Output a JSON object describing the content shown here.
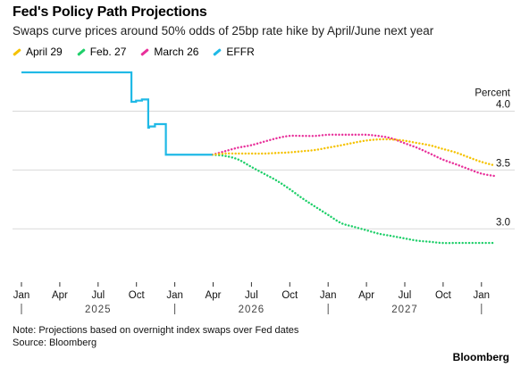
{
  "chart_data": {
    "type": "line",
    "title": "Fed's Policy Path Projections",
    "subtitle": "Swaps curve prices around 50% odds of 25bp rate hike by April/June next year",
    "ylabel": "Percent",
    "ylim": [
      2.6,
      4.3
    ],
    "y_ticks": [
      "4.0",
      "3.5",
      "3.0"
    ],
    "grid": true,
    "legend_position": "top-left",
    "x_ticks": [
      "Jan",
      "Apr",
      "Jul",
      "Oct",
      "Jan",
      "Apr",
      "Jul",
      "Oct",
      "Jan",
      "Apr",
      "Jul",
      "Oct",
      "Jan"
    ],
    "year_labels": [
      "2025",
      "2026",
      "2027"
    ],
    "series": [
      {
        "name": "April 29",
        "color": "#f5c200",
        "style": "dotted",
        "x": [
          "2026-04-01",
          "2026-05-01",
          "2026-06-01",
          "2026-07-01",
          "2026-08-01",
          "2026-09-01",
          "2026-10-01",
          "2026-11-01",
          "2026-12-01",
          "2027-01-01",
          "2027-02-01",
          "2027-03-01",
          "2027-04-01",
          "2027-05-01",
          "2027-06-01",
          "2027-07-01",
          "2027-08-01",
          "2027-09-01",
          "2027-10-01",
          "2027-11-01",
          "2027-12-01",
          "2028-01-01",
          "2028-02-01"
        ],
        "values": [
          3.63,
          3.64,
          3.64,
          3.64,
          3.64,
          3.645,
          3.65,
          3.66,
          3.67,
          3.69,
          3.71,
          3.73,
          3.75,
          3.76,
          3.76,
          3.75,
          3.73,
          3.71,
          3.68,
          3.65,
          3.61,
          3.57,
          3.54
        ]
      },
      {
        "name": "Feb. 27",
        "color": "#1fcf6a",
        "style": "dotted",
        "x": [
          "2026-04-01",
          "2026-05-01",
          "2026-06-01",
          "2026-07-01",
          "2026-08-01",
          "2026-09-01",
          "2026-10-01",
          "2026-11-01",
          "2026-12-01",
          "2027-01-01",
          "2027-02-01",
          "2027-03-01",
          "2027-04-01",
          "2027-05-01",
          "2027-06-01",
          "2027-07-01",
          "2027-08-01",
          "2027-09-01",
          "2027-10-01",
          "2027-11-01",
          "2027-12-01",
          "2028-01-01",
          "2028-02-01"
        ],
        "values": [
          3.63,
          3.62,
          3.59,
          3.53,
          3.47,
          3.41,
          3.34,
          3.26,
          3.19,
          3.12,
          3.05,
          3.02,
          2.99,
          2.96,
          2.94,
          2.92,
          2.9,
          2.89,
          2.88,
          2.88,
          2.88,
          2.88,
          2.88
        ]
      },
      {
        "name": "March 26",
        "color": "#e8309a",
        "style": "dotted",
        "x": [
          "2026-04-01",
          "2026-05-01",
          "2026-06-01",
          "2026-07-01",
          "2026-08-01",
          "2026-09-01",
          "2026-10-01",
          "2026-11-01",
          "2026-12-01",
          "2027-01-01",
          "2027-02-01",
          "2027-03-01",
          "2027-04-01",
          "2027-05-01",
          "2027-06-01",
          "2027-07-01",
          "2027-08-01",
          "2027-09-01",
          "2027-10-01",
          "2027-11-01",
          "2027-12-01",
          "2028-01-01",
          "2028-02-01"
        ],
        "values": [
          3.63,
          3.66,
          3.69,
          3.71,
          3.74,
          3.77,
          3.79,
          3.79,
          3.79,
          3.8,
          3.8,
          3.8,
          3.8,
          3.79,
          3.77,
          3.73,
          3.69,
          3.64,
          3.59,
          3.55,
          3.51,
          3.47,
          3.45
        ]
      },
      {
        "name": "EFFR",
        "color": "#1fb9e6",
        "style": "step",
        "x": [
          "2025-01-01",
          "2025-04-01",
          "2025-07-01",
          "2025-09-18",
          "2025-09-20",
          "2025-10-01",
          "2025-10-15",
          "2025-10-30",
          "2025-11-01",
          "2025-11-15",
          "2025-12-11",
          "2026-01-01",
          "2026-03-01",
          "2026-04-01"
        ],
        "values": [
          4.33,
          4.33,
          4.33,
          4.33,
          4.08,
          4.09,
          4.1,
          3.86,
          3.87,
          3.89,
          3.63,
          3.63,
          3.63,
          3.63
        ]
      }
    ]
  },
  "note": "Note: Projections based on overnight index swaps over Fed dates",
  "source": "Source: Bloomberg",
  "brand": "Bloomberg"
}
